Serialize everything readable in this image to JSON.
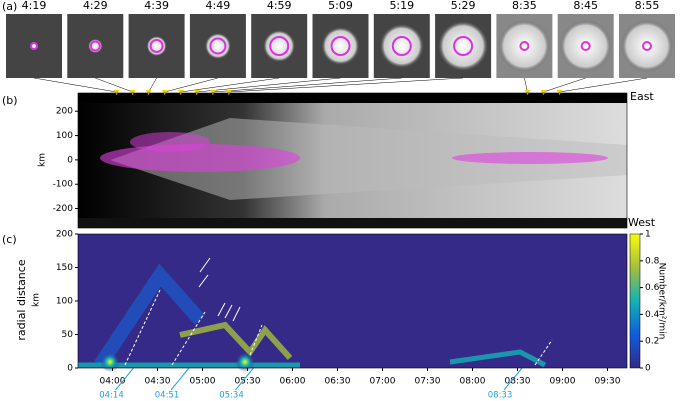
{
  "panel_a": {
    "label": "(a)",
    "frames": [
      {
        "value": 259,
        "label": "4:19"
      },
      {
        "value": 269,
        "label": "4:29"
      },
      {
        "value": 279,
        "label": "4:39"
      },
      {
        "value": 289,
        "label": "4:49"
      },
      {
        "value": 299,
        "label": "4:59"
      },
      {
        "value": 309,
        "label": "5:09"
      },
      {
        "value": 319,
        "label": "5:19"
      },
      {
        "value": 329,
        "label": "5:29"
      },
      {
        "value": 515,
        "label": "8:35"
      },
      {
        "value": 525,
        "label": "8:45"
      },
      {
        "value": 535,
        "label": "8:55"
      }
    ]
  },
  "chart_data": [
    {
      "type": "heatmap",
      "label": "(b)",
      "ylabel": "km",
      "xlim": [
        235,
        577
      ],
      "ylim": [
        -280,
        275
      ],
      "yticks": [
        -200,
        -100,
        0,
        100,
        200
      ],
      "top_label": "East",
      "bottom_label": "West"
    },
    {
      "type": "heatmap",
      "label": "(c)",
      "ylabel": [
        "radial distance",
        "km"
      ],
      "xlim": [
        217,
        583
      ],
      "ylim": [
        0,
        200
      ],
      "yticks": [
        0,
        50,
        100,
        150,
        200
      ],
      "xticks": [
        {
          "value": 240,
          "label": "04:00"
        },
        {
          "value": 270,
          "label": "04:30"
        },
        {
          "value": 300,
          "label": "05:00"
        },
        {
          "value": 330,
          "label": "05:30"
        },
        {
          "value": 360,
          "label": "06:00"
        },
        {
          "value": 390,
          "label": "06:30"
        },
        {
          "value": 420,
          "label": "07:00"
        },
        {
          "value": 450,
          "label": "07:30"
        },
        {
          "value": 480,
          "label": "08:00"
        },
        {
          "value": 510,
          "label": "08:30"
        },
        {
          "value": 540,
          "label": "09:00"
        },
        {
          "value": 570,
          "label": "09:30"
        }
      ],
      "annotations": [
        {
          "value": 254,
          "label": "04:14"
        },
        {
          "value": 291,
          "label": "04:51"
        },
        {
          "value": 334,
          "label": "05:34"
        },
        {
          "value": 513,
          "label": "08:33"
        }
      ],
      "colorbar": {
        "label": "Number/km²/min",
        "lim": [
          0,
          1
        ],
        "ticks": [
          0,
          0.2,
          0.4,
          0.6,
          0.8,
          1
        ]
      }
    }
  ]
}
